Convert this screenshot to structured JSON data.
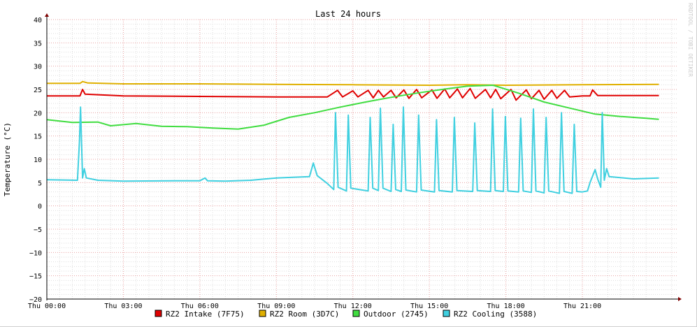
{
  "chart_data": {
    "type": "line",
    "title": "Last 24 hours",
    "ylabel": "Temperature (°C)",
    "xlabel": "",
    "ylim": [
      -20,
      40
    ],
    "xlim": [
      0,
      24.7
    ],
    "y_ticks": [
      "40",
      "35",
      "30",
      "25",
      "20",
      "15",
      "10",
      "5",
      "0",
      "−5",
      "−10",
      "−15",
      "−20"
    ],
    "x_ticks": [
      {
        "t": 0,
        "label": "Thu 00:00"
      },
      {
        "t": 3,
        "label": "Thu 03:00"
      },
      {
        "t": 6,
        "label": "Thu 06:00"
      },
      {
        "t": 9,
        "label": "Thu 09:00"
      },
      {
        "t": 12,
        "label": "Thu 12:00"
      },
      {
        "t": 15,
        "label": "Thu 15:00"
      },
      {
        "t": 18,
        "label": "Thu 18:00"
      },
      {
        "t": 21,
        "label": "Thu 21:00"
      }
    ],
    "grid": true,
    "legend_position": "bottom",
    "credit": "RRDTOOL / TOBI OETIKER",
    "series": [
      {
        "name": "RZ2 Intake (7F75)",
        "color": "#e00000",
        "points": [
          [
            0,
            23.6
          ],
          [
            1.3,
            23.6
          ],
          [
            1.4,
            25.0
          ],
          [
            1.5,
            24.0
          ],
          [
            3,
            23.6
          ],
          [
            6,
            23.5
          ],
          [
            9,
            23.4
          ],
          [
            11,
            23.4
          ],
          [
            11.4,
            24.8
          ],
          [
            11.6,
            23.4
          ],
          [
            12,
            24.7
          ],
          [
            12.2,
            23.4
          ],
          [
            12.6,
            24.8
          ],
          [
            12.8,
            23.2
          ],
          [
            13.0,
            24.8
          ],
          [
            13.2,
            23.4
          ],
          [
            13.5,
            24.8
          ],
          [
            13.7,
            23.2
          ],
          [
            14.0,
            24.9
          ],
          [
            14.2,
            23.1
          ],
          [
            14.5,
            25.0
          ],
          [
            14.7,
            23.2
          ],
          [
            15.1,
            24.9
          ],
          [
            15.3,
            23.1
          ],
          [
            15.6,
            25.1
          ],
          [
            15.8,
            23.2
          ],
          [
            16.1,
            25.1
          ],
          [
            16.3,
            23.2
          ],
          [
            16.6,
            25.2
          ],
          [
            16.8,
            23.1
          ],
          [
            17.2,
            25.0
          ],
          [
            17.4,
            23.2
          ],
          [
            17.6,
            25.0
          ],
          [
            17.8,
            23.0
          ],
          [
            18.2,
            25.0
          ],
          [
            18.4,
            22.7
          ],
          [
            18.8,
            24.9
          ],
          [
            19.0,
            23.0
          ],
          [
            19.3,
            24.8
          ],
          [
            19.5,
            22.9
          ],
          [
            19.8,
            24.8
          ],
          [
            20.0,
            23.1
          ],
          [
            20.3,
            24.8
          ],
          [
            20.5,
            23.4
          ],
          [
            21,
            23.6
          ],
          [
            21.3,
            23.6
          ],
          [
            21.4,
            24.9
          ],
          [
            21.6,
            23.7
          ],
          [
            24.0,
            23.7
          ]
        ]
      },
      {
        "name": "RZ2 Room (3D7C)",
        "color": "#e0b000",
        "points": [
          [
            0,
            26.3
          ],
          [
            1.3,
            26.3
          ],
          [
            1.4,
            26.7
          ],
          [
            1.6,
            26.4
          ],
          [
            3,
            26.2
          ],
          [
            6,
            26.2
          ],
          [
            9,
            26.1
          ],
          [
            12,
            26.0
          ],
          [
            15,
            25.9
          ],
          [
            16.5,
            26.0
          ],
          [
            18,
            25.9
          ],
          [
            21,
            26.0
          ],
          [
            24,
            26.1
          ]
        ]
      },
      {
        "name": "Outdoor (2745)",
        "color": "#40dd40",
        "points": [
          [
            0,
            18.5
          ],
          [
            1,
            17.9
          ],
          [
            2,
            18.0
          ],
          [
            2.5,
            17.2
          ],
          [
            3.5,
            17.7
          ],
          [
            4.5,
            17.1
          ],
          [
            5.5,
            17.0
          ],
          [
            6.5,
            16.7
          ],
          [
            7.5,
            16.5
          ],
          [
            8.5,
            17.3
          ],
          [
            9.5,
            19.0
          ],
          [
            10.5,
            20.0
          ],
          [
            11.5,
            21.2
          ],
          [
            12.5,
            22.3
          ],
          [
            13.5,
            23.3
          ],
          [
            14.5,
            24.2
          ],
          [
            15.5,
            25.0
          ],
          [
            16.5,
            25.7
          ],
          [
            17.5,
            25.9
          ],
          [
            18.5,
            24.2
          ],
          [
            19.5,
            22.3
          ],
          [
            20.5,
            21.0
          ],
          [
            21.5,
            19.7
          ],
          [
            22.5,
            19.2
          ],
          [
            23.5,
            18.8
          ],
          [
            24.0,
            18.6
          ]
        ]
      },
      {
        "name": "RZ2 Cooling (3588)",
        "color": "#40d0e0",
        "points": [
          [
            0,
            5.6
          ],
          [
            1.2,
            5.5
          ],
          [
            1.28,
            14
          ],
          [
            1.32,
            21.2
          ],
          [
            1.4,
            6.0
          ],
          [
            1.47,
            8.0
          ],
          [
            1.55,
            6.0
          ],
          [
            2,
            5.5
          ],
          [
            3,
            5.3
          ],
          [
            5,
            5.4
          ],
          [
            6,
            5.4
          ],
          [
            6.2,
            6.0
          ],
          [
            6.3,
            5.4
          ],
          [
            7,
            5.3
          ],
          [
            8,
            5.5
          ],
          [
            9,
            6.0
          ],
          [
            10.3,
            6.3
          ],
          [
            10.45,
            9.2
          ],
          [
            10.6,
            6.5
          ],
          [
            11,
            4.8
          ],
          [
            11.25,
            3.5
          ],
          [
            11.32,
            20
          ],
          [
            11.42,
            4.0
          ],
          [
            11.75,
            3.2
          ],
          [
            11.82,
            19.5
          ],
          [
            11.92,
            3.8
          ],
          [
            12.6,
            3.2
          ],
          [
            12.68,
            19.0
          ],
          [
            12.78,
            3.8
          ],
          [
            13.0,
            3.3
          ],
          [
            13.08,
            21.0
          ],
          [
            13.18,
            3.8
          ],
          [
            13.5,
            3.1
          ],
          [
            13.58,
            17.5
          ],
          [
            13.68,
            3.5
          ],
          [
            13.9,
            3.1
          ],
          [
            13.98,
            21.2
          ],
          [
            14.08,
            3.4
          ],
          [
            14.5,
            3.0
          ],
          [
            14.58,
            19.5
          ],
          [
            14.68,
            3.4
          ],
          [
            15.2,
            3.0
          ],
          [
            15.28,
            18.5
          ],
          [
            15.38,
            3.3
          ],
          [
            15.9,
            3.0
          ],
          [
            15.98,
            19.0
          ],
          [
            16.08,
            3.3
          ],
          [
            16.7,
            3.1
          ],
          [
            16.78,
            17.8
          ],
          [
            16.88,
            3.3
          ],
          [
            17.4,
            3.1
          ],
          [
            17.48,
            20.8
          ],
          [
            17.58,
            3.3
          ],
          [
            17.9,
            3.1
          ],
          [
            17.98,
            19.2
          ],
          [
            18.08,
            3.2
          ],
          [
            18.5,
            3.0
          ],
          [
            18.58,
            18.8
          ],
          [
            18.68,
            3.2
          ],
          [
            19.0,
            2.9
          ],
          [
            19.08,
            20.8
          ],
          [
            19.18,
            3.2
          ],
          [
            19.5,
            2.8
          ],
          [
            19.58,
            19.0
          ],
          [
            19.68,
            3.2
          ],
          [
            20.1,
            2.7
          ],
          [
            20.18,
            20.0
          ],
          [
            20.28,
            3.1
          ],
          [
            20.6,
            2.7
          ],
          [
            20.68,
            17.5
          ],
          [
            20.78,
            3.1
          ],
          [
            21.0,
            3.0
          ],
          [
            21.2,
            3.2
          ],
          [
            21.3,
            5.0
          ],
          [
            21.5,
            7.8
          ],
          [
            21.6,
            5.8
          ],
          [
            21.72,
            4.0
          ],
          [
            21.78,
            20.0
          ],
          [
            21.86,
            5.5
          ],
          [
            21.95,
            8.0
          ],
          [
            22.05,
            6.3
          ],
          [
            23,
            5.8
          ],
          [
            24,
            6.0
          ]
        ]
      }
    ]
  }
}
